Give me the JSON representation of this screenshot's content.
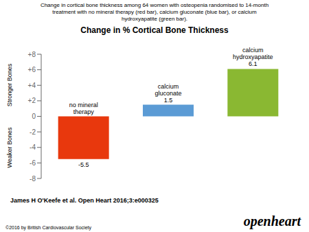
{
  "chart_data": {
    "type": "bar",
    "title": "Change in % Cortical Bone Thickness",
    "subtitle": "Change in cortical bone thickness among 64 women with osteopenia randomised to 14-month\ntreatment with no mineral therapy (red bar), calcium gluconate (blue bar), or calcium\nhydroxyapatite (green bar).",
    "categories": [
      "no mineral\ntherapy",
      "calcium\ngluconate",
      "calcium\nhydroxyapatite"
    ],
    "values": [
      -5.5,
      1.5,
      6.1
    ],
    "colors": [
      "#e8380d",
      "#5b9bd5",
      "#8ab832"
    ],
    "ylim": [
      -8,
      8
    ],
    "yticks": [
      -8,
      -6,
      -4,
      -2,
      0,
      {
        "value": 2,
        "label": "+2"
      },
      {
        "value": 4,
        "label": "+4"
      },
      {
        "value": 6,
        "label": "+6"
      },
      {
        "value": 8,
        "label": "+8"
      }
    ],
    "data_labels": true,
    "tick_labels": "y",
    "annotations": [
      "Stronger Bones",
      "Weaker Bones",
      "James H O'Keefe et al. Open Heart 2016;3:e000325",
      "©2016 by British Cardiovascular Society",
      "openheart"
    ]
  }
}
